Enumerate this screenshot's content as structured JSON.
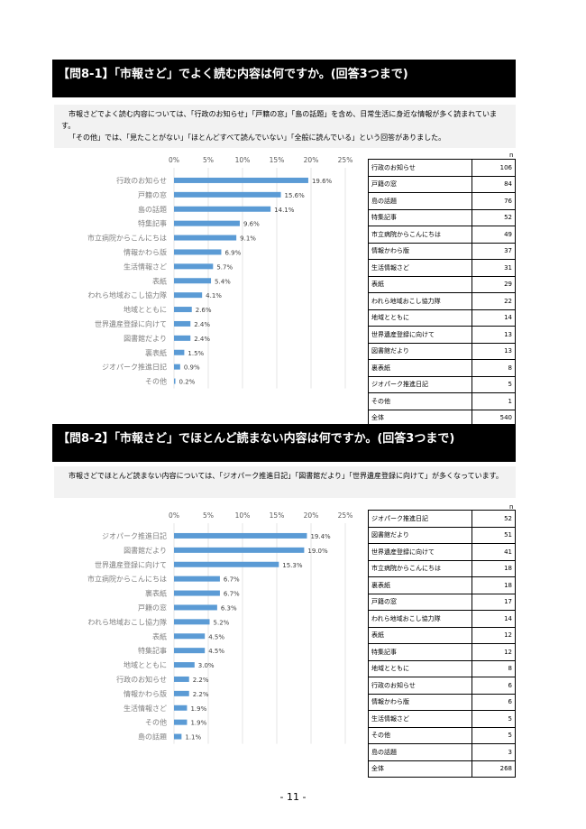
{
  "sections": [
    {
      "header": "【問8-1】「市報さど」でよく読む内容は何ですか。(回答3つまで)",
      "summary": [
        "市報さどでよく読む内容については、「行政のお知らせ」「戸籍の窓」「島の話題」を含め、日常生活に身近な情報が多く読まれています。",
        "「その他」では、「見たことがない」「ほとんどすべて読んでいない」「全般に読んでいる」という回答がありました。"
      ],
      "table_n_label": "n",
      "table": [
        {
          "label": "行政のお知らせ",
          "n": "106"
        },
        {
          "label": "戸籍の窓",
          "n": "84"
        },
        {
          "label": "島の話題",
          "n": "76"
        },
        {
          "label": "特集記事",
          "n": "52"
        },
        {
          "label": "市立病院からこんにちは",
          "n": "49"
        },
        {
          "label": "情報かわら版",
          "n": "37"
        },
        {
          "label": "生活情報さど",
          "n": "31"
        },
        {
          "label": "表紙",
          "n": "29"
        },
        {
          "label": "われら地域おこし協力隊",
          "n": "22"
        },
        {
          "label": "地域とともに",
          "n": "14"
        },
        {
          "label": "世界遺産登録に向けて",
          "n": "13"
        },
        {
          "label": "図書館だより",
          "n": "13"
        },
        {
          "label": "裏表紙",
          "n": "8"
        },
        {
          "label": "ジオパーク推進日記",
          "n": "5"
        },
        {
          "label": "その他",
          "n": "1"
        },
        {
          "label": "全体",
          "n": "540"
        }
      ]
    },
    {
      "header": "【問8-2】「市報さど」でほとんど読まない内容は何ですか。(回答3つまで)",
      "summary": [
        "市報さどでほとんど読まない内容については、「ジオパーク推進日記」「図書館だより」「世界遺産登録に向けて」が多くなっています。"
      ],
      "table_n_label": "n",
      "table": [
        {
          "label": "ジオパーク推進日記",
          "n": "52"
        },
        {
          "label": "図書館だより",
          "n": "51"
        },
        {
          "label": "世界遺産登録に向けて",
          "n": "41"
        },
        {
          "label": "市立病院からこんにちは",
          "n": "18"
        },
        {
          "label": "裏表紙",
          "n": "18"
        },
        {
          "label": "戸籍の窓",
          "n": "17"
        },
        {
          "label": "われら地域おこし協力隊",
          "n": "14"
        },
        {
          "label": "表紙",
          "n": "12"
        },
        {
          "label": "特集記事",
          "n": "12"
        },
        {
          "label": "地域とともに",
          "n": "8"
        },
        {
          "label": "行政のお知らせ",
          "n": "6"
        },
        {
          "label": "情報かわら版",
          "n": "6"
        },
        {
          "label": "生活情報さど",
          "n": "5"
        },
        {
          "label": "その他",
          "n": "5"
        },
        {
          "label": "島の話題",
          "n": "3"
        },
        {
          "label": "全体",
          "n": "268"
        }
      ]
    }
  ],
  "page_number": "- 11 -",
  "bar_color": "#5b9bd5",
  "chart_data": [
    {
      "type": "bar",
      "orientation": "horizontal",
      "xlim": [
        0,
        25
      ],
      "ticks": [
        "0%",
        "5%",
        "10%",
        "15%",
        "20%",
        "25%"
      ],
      "grid": true,
      "categories": [
        "行政のお知らせ",
        "戸籍の窓",
        "島の話題",
        "特集記事",
        "市立病院からこんにちは",
        "情報かわら版",
        "生活情報さど",
        "表紙",
        "われら地域おこし協力隊",
        "地域とともに",
        "世界遺産登録に向けて",
        "図書館だより",
        "裏表紙",
        "ジオパーク推進日記",
        "その他"
      ],
      "values": [
        19.6,
        15.6,
        14.1,
        9.6,
        9.1,
        6.9,
        5.7,
        5.4,
        4.1,
        2.6,
        2.4,
        2.4,
        1.5,
        0.9,
        0.2
      ],
      "value_labels": [
        "19.6%",
        "15.6%",
        "14.1%",
        "9.6%",
        "9.1%",
        "6.9%",
        "5.7%",
        "5.4%",
        "4.1%",
        "2.6%",
        "2.4%",
        "2.4%",
        "1.5%",
        "0.9%",
        "0.2%"
      ]
    },
    {
      "type": "bar",
      "orientation": "horizontal",
      "xlim": [
        0,
        25
      ],
      "ticks": [
        "0%",
        "5%",
        "10%",
        "15%",
        "20%",
        "25%"
      ],
      "grid": true,
      "categories": [
        "ジオパーク推進日記",
        "図書館だより",
        "世界遺産登録に向けて",
        "市立病院からこんにちは",
        "裏表紙",
        "戸籍の窓",
        "われら地域おこし協力隊",
        "表紙",
        "特集記事",
        "地域とともに",
        "行政のお知らせ",
        "情報かわら版",
        "生活情報さど",
        "その他",
        "島の話題"
      ],
      "values": [
        19.4,
        19.0,
        15.3,
        6.7,
        6.7,
        6.3,
        5.2,
        4.5,
        4.5,
        3.0,
        2.2,
        2.2,
        1.9,
        1.9,
        1.1
      ],
      "value_labels": [
        "19.4%",
        "19.0%",
        "15.3%",
        "6.7%",
        "6.7%",
        "6.3%",
        "5.2%",
        "4.5%",
        "4.5%",
        "3.0%",
        "2.2%",
        "2.2%",
        "1.9%",
        "1.9%",
        "1.1%"
      ]
    }
  ]
}
